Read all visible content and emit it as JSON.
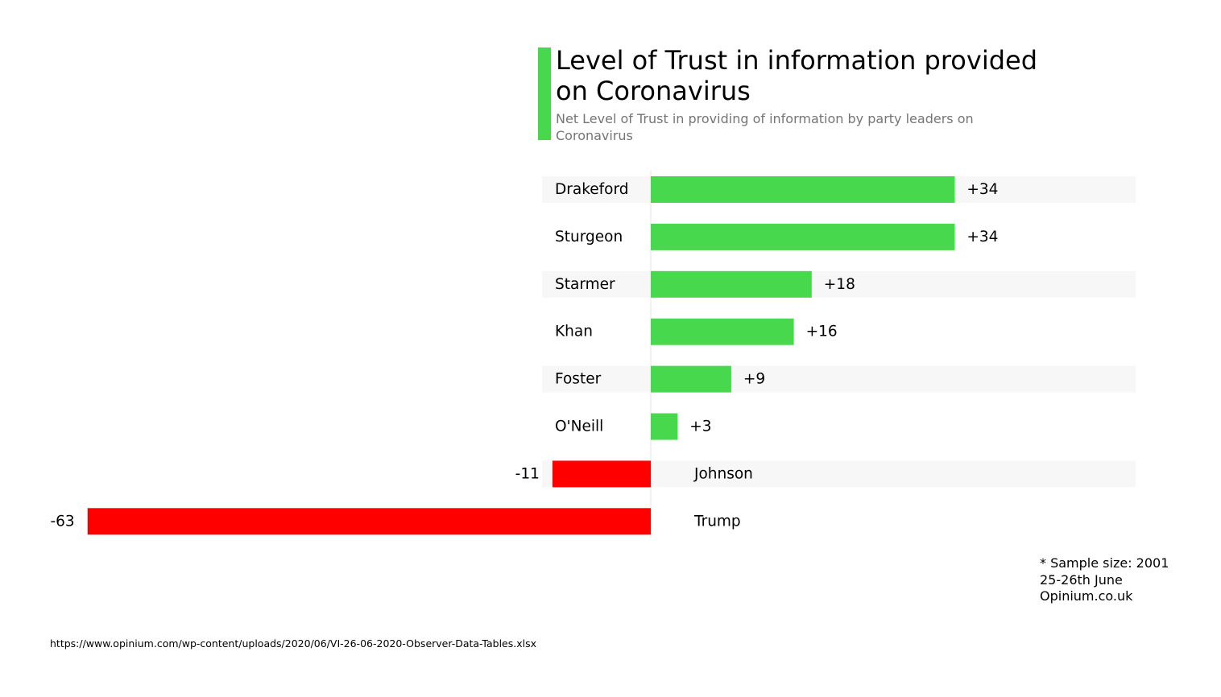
{
  "colors": {
    "positive": "#48d84e",
    "negative": "#ff0000",
    "accent": "#48d84e",
    "band": "#f7f7f7",
    "axis": "#e6e6e6"
  },
  "header": {
    "title": "Level of Trust in information provided on Coronavirus",
    "subtitle": "Net Level of Trust in providing of information by party leaders on Coronavirus"
  },
  "chart_data": {
    "type": "bar",
    "orientation": "horizontal",
    "title": "Level of Trust in information provided on Coronavirus",
    "subtitle": "Net Level of Trust in providing of information by party leaders on Coronavirus",
    "categories": [
      "Drakeford",
      "Sturgeon",
      "Starmer",
      "Khan",
      "Foster",
      "O'Neill",
      "Johnson",
      "Trump"
    ],
    "values": [
      34,
      34,
      18,
      16,
      9,
      3,
      -11,
      -63
    ],
    "value_labels": [
      "+34",
      "+34",
      "+18",
      "+16",
      "+9",
      "+3",
      "-11",
      "-63"
    ],
    "xlim": [
      -63,
      54
    ],
    "grid": false,
    "legend": "none"
  },
  "notes": [
    "* Sample size: 2001",
    "25-26th June",
    "Opinium.co.uk"
  ],
  "source": "https://www.opinium.com/wp-content/uploads/2020/06/VI-26-06-2020-Observer-Data-Tables.xlsx"
}
